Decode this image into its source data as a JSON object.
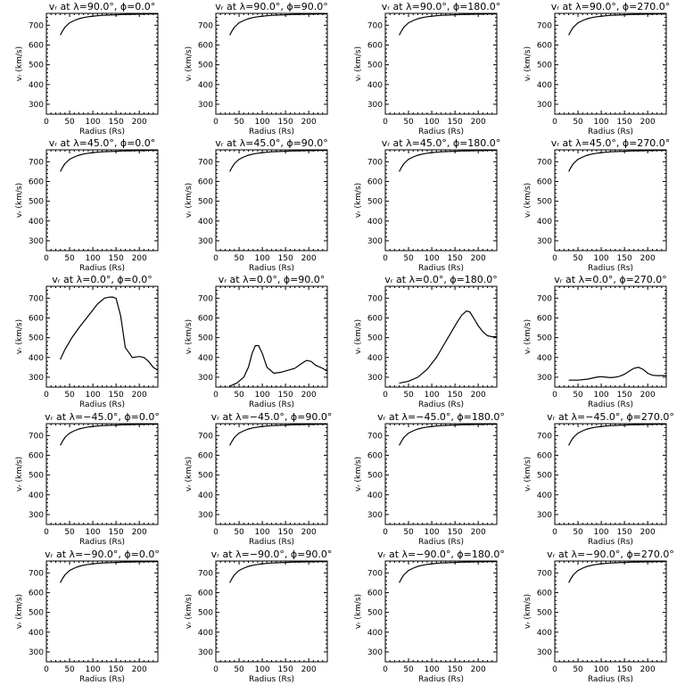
{
  "chart_data": [
    {
      "type": "line",
      "title": "vᵣ at λ=90.0°, ϕ=0.0°",
      "xlabel": "Radius (Rs)",
      "ylabel": "vᵣ (km/s)",
      "xlim": [
        0,
        240
      ],
      "ylim": [
        250,
        760
      ],
      "xticks": [
        0,
        50,
        100,
        150,
        200
      ],
      "yticks": [
        300,
        400,
        500,
        600,
        700
      ],
      "profile": "fast"
    },
    {
      "type": "line",
      "title": "vᵣ at λ=90.0°, ϕ=90.0°",
      "xlabel": "Radius (Rs)",
      "ylabel": "vᵣ (km/s)",
      "xlim": [
        0,
        240
      ],
      "ylim": [
        250,
        760
      ],
      "xticks": [
        0,
        50,
        100,
        150,
        200
      ],
      "yticks": [
        300,
        400,
        500,
        600,
        700
      ],
      "profile": "fast"
    },
    {
      "type": "line",
      "title": "vᵣ at λ=90.0°, ϕ=180.0°",
      "xlabel": "Radius (Rs)",
      "ylabel": "vᵣ (km/s)",
      "xlim": [
        0,
        240
      ],
      "ylim": [
        250,
        760
      ],
      "xticks": [
        0,
        50,
        100,
        150,
        200
      ],
      "yticks": [
        300,
        400,
        500,
        600,
        700
      ],
      "profile": "fast"
    },
    {
      "type": "line",
      "title": "vᵣ at λ=90.0°, ϕ=270.0°",
      "xlabel": "Radius (Rs)",
      "ylabel": "vᵣ (km/s)",
      "xlim": [
        0,
        240
      ],
      "ylim": [
        250,
        760
      ],
      "xticks": [
        0,
        50,
        100,
        150,
        200
      ],
      "yticks": [
        300,
        400,
        500,
        600,
        700
      ],
      "profile": "fast"
    },
    {
      "type": "line",
      "title": "vᵣ at λ=45.0°, ϕ=0.0°",
      "xlabel": "Radius (Rs)",
      "ylabel": "vᵣ (km/s)",
      "xlim": [
        0,
        240
      ],
      "ylim": [
        250,
        760
      ],
      "xticks": [
        0,
        50,
        100,
        150,
        200
      ],
      "yticks": [
        300,
        400,
        500,
        600,
        700
      ],
      "profile": "fast"
    },
    {
      "type": "line",
      "title": "vᵣ at λ=45.0°, ϕ=90.0°",
      "xlabel": "Radius (Rs)",
      "ylabel": "vᵣ (km/s)",
      "xlim": [
        0,
        240
      ],
      "ylim": [
        250,
        760
      ],
      "xticks": [
        0,
        50,
        100,
        150,
        200
      ],
      "yticks": [
        300,
        400,
        500,
        600,
        700
      ],
      "profile": "fast"
    },
    {
      "type": "line",
      "title": "vᵣ at λ=45.0°, ϕ=180.0°",
      "xlabel": "Radius (Rs)",
      "ylabel": "vᵣ (km/s)",
      "xlim": [
        0,
        240
      ],
      "ylim": [
        250,
        760
      ],
      "xticks": [
        0,
        50,
        100,
        150,
        200
      ],
      "yticks": [
        300,
        400,
        500,
        600,
        700
      ],
      "profile": "fast"
    },
    {
      "type": "line",
      "title": "vᵣ at λ=45.0°, ϕ=270.0°",
      "xlabel": "Radius (Rs)",
      "ylabel": "vᵣ (km/s)",
      "xlim": [
        0,
        240
      ],
      "ylim": [
        250,
        760
      ],
      "xticks": [
        0,
        50,
        100,
        150,
        200
      ],
      "yticks": [
        300,
        400,
        500,
        600,
        700
      ],
      "profile": "fast"
    },
    {
      "type": "line",
      "title": "vᵣ at λ=0.0°, ϕ=0.0°",
      "xlabel": "Radius (Rs)",
      "ylabel": "vᵣ (km/s)",
      "xlim": [
        0,
        240
      ],
      "ylim": [
        250,
        760
      ],
      "xticks": [
        0,
        50,
        100,
        150,
        200
      ],
      "yticks": [
        300,
        400,
        500,
        600,
        700
      ],
      "x": [
        30,
        40,
        55,
        70,
        90,
        110,
        125,
        135,
        142,
        150,
        160,
        170,
        185,
        200,
        210,
        220,
        230,
        240
      ],
      "y": [
        390,
        440,
        500,
        550,
        610,
        670,
        700,
        705,
        706,
        700,
        610,
        450,
        400,
        405,
        400,
        380,
        350,
        335
      ]
    },
    {
      "type": "line",
      "title": "vᵣ at λ=0.0°, ϕ=90.0°",
      "xlabel": "Radius (Rs)",
      "ylabel": "vᵣ (km/s)",
      "xlim": [
        0,
        240
      ],
      "ylim": [
        250,
        760
      ],
      "xticks": [
        0,
        50,
        100,
        150,
        200
      ],
      "yticks": [
        300,
        400,
        500,
        600,
        700
      ],
      "x": [
        30,
        45,
        60,
        70,
        78,
        85,
        92,
        100,
        110,
        125,
        140,
        155,
        170,
        185,
        195,
        205,
        215,
        230,
        240
      ],
      "y": [
        255,
        270,
        300,
        350,
        420,
        460,
        460,
        420,
        350,
        320,
        325,
        335,
        345,
        370,
        385,
        380,
        360,
        345,
        330
      ]
    },
    {
      "type": "line",
      "title": "vᵣ at λ=0.0°, ϕ=180.0°",
      "xlabel": "Radius (Rs)",
      "ylabel": "vᵣ (km/s)",
      "xlim": [
        0,
        240
      ],
      "ylim": [
        250,
        760
      ],
      "xticks": [
        0,
        50,
        100,
        150,
        200
      ],
      "yticks": [
        300,
        400,
        500,
        600,
        700
      ],
      "x": [
        30,
        50,
        70,
        90,
        110,
        125,
        140,
        155,
        165,
        175,
        182,
        190,
        200,
        210,
        220,
        230,
        240
      ],
      "y": [
        270,
        280,
        300,
        340,
        400,
        460,
        520,
        580,
        615,
        635,
        630,
        600,
        560,
        530,
        510,
        505,
        505
      ]
    },
    {
      "type": "line",
      "title": "vᵣ at λ=0.0°, ϕ=270.0°",
      "xlabel": "Radius (Rs)",
      "ylabel": "vᵣ (km/s)",
      "xlim": [
        0,
        240
      ],
      "ylim": [
        250,
        760
      ],
      "xticks": [
        0,
        50,
        100,
        150,
        200
      ],
      "yticks": [
        300,
        400,
        500,
        600,
        700
      ],
      "x": [
        30,
        50,
        70,
        90,
        100,
        110,
        120,
        130,
        140,
        150,
        160,
        170,
        180,
        190,
        200,
        210,
        220,
        230,
        240
      ],
      "y": [
        285,
        285,
        290,
        300,
        303,
        300,
        298,
        300,
        305,
        315,
        330,
        345,
        350,
        340,
        320,
        310,
        308,
        308,
        308
      ]
    },
    {
      "type": "line",
      "title": "vᵣ at λ=−45.0°, ϕ=0.0°",
      "xlabel": "Radius (Rs)",
      "ylabel": "vᵣ (km/s)",
      "xlim": [
        0,
        240
      ],
      "ylim": [
        250,
        760
      ],
      "xticks": [
        0,
        50,
        100,
        150,
        200
      ],
      "yticks": [
        300,
        400,
        500,
        600,
        700
      ],
      "profile": "fast"
    },
    {
      "type": "line",
      "title": "vᵣ at λ=−45.0°, ϕ=90.0°",
      "xlabel": "Radius (Rs)",
      "ylabel": "vᵣ (km/s)",
      "xlim": [
        0,
        240
      ],
      "ylim": [
        250,
        760
      ],
      "xticks": [
        0,
        50,
        100,
        150,
        200
      ],
      "yticks": [
        300,
        400,
        500,
        600,
        700
      ],
      "profile": "fast"
    },
    {
      "type": "line",
      "title": "vᵣ at λ=−45.0°, ϕ=180.0°",
      "xlabel": "Radius (Rs)",
      "ylabel": "vᵣ (km/s)",
      "xlim": [
        0,
        240
      ],
      "ylim": [
        250,
        760
      ],
      "xticks": [
        0,
        50,
        100,
        150,
        200
      ],
      "yticks": [
        300,
        400,
        500,
        600,
        700
      ],
      "profile": "fast"
    },
    {
      "type": "line",
      "title": "vᵣ at λ=−45.0°, ϕ=270.0°",
      "xlabel": "Radius (Rs)",
      "ylabel": "vᵣ (km/s)",
      "xlim": [
        0,
        240
      ],
      "ylim": [
        250,
        760
      ],
      "xticks": [
        0,
        50,
        100,
        150,
        200
      ],
      "yticks": [
        300,
        400,
        500,
        600,
        700
      ],
      "profile": "fast"
    },
    {
      "type": "line",
      "title": "vᵣ at λ=−90.0°, ϕ=0.0°",
      "xlabel": "Radius (Rs)",
      "ylabel": "vᵣ (km/s)",
      "xlim": [
        0,
        240
      ],
      "ylim": [
        250,
        760
      ],
      "xticks": [
        0,
        50,
        100,
        150,
        200
      ],
      "yticks": [
        300,
        400,
        500,
        600,
        700
      ],
      "profile": "fast"
    },
    {
      "type": "line",
      "title": "vᵣ at λ=−90.0°, ϕ=90.0°",
      "xlabel": "Radius (Rs)",
      "ylabel": "vᵣ (km/s)",
      "xlim": [
        0,
        240
      ],
      "ylim": [
        250,
        760
      ],
      "xticks": [
        0,
        50,
        100,
        150,
        200
      ],
      "yticks": [
        300,
        400,
        500,
        600,
        700
      ],
      "profile": "fast"
    },
    {
      "type": "line",
      "title": "vᵣ at λ=−90.0°, ϕ=180.0°",
      "xlabel": "Radius (Rs)",
      "ylabel": "vᵣ (km/s)",
      "xlim": [
        0,
        240
      ],
      "ylim": [
        250,
        760
      ],
      "xticks": [
        0,
        50,
        100,
        150,
        200
      ],
      "yticks": [
        300,
        400,
        500,
        600,
        700
      ],
      "profile": "fast"
    },
    {
      "type": "line",
      "title": "vᵣ at λ=−90.0°, ϕ=270.0°",
      "xlabel": "Radius (Rs)",
      "ylabel": "vᵣ (km/s)",
      "xlim": [
        0,
        240
      ],
      "ylim": [
        250,
        760
      ],
      "xticks": [
        0,
        50,
        100,
        150,
        200
      ],
      "yticks": [
        300,
        400,
        500,
        600,
        700
      ],
      "profile": "fast"
    }
  ],
  "fast_profile": {
    "x": [
      30,
      35,
      40,
      50,
      60,
      70,
      80,
      90,
      100,
      110,
      120,
      130,
      140,
      150,
      160,
      170,
      180,
      190,
      200,
      210,
      220,
      230,
      240
    ],
    "y": [
      650,
      672,
      690,
      712,
      724,
      733,
      739,
      743,
      746,
      748,
      750,
      751,
      752,
      753,
      754,
      755,
      755,
      756,
      756,
      756,
      757,
      757,
      757
    ]
  }
}
